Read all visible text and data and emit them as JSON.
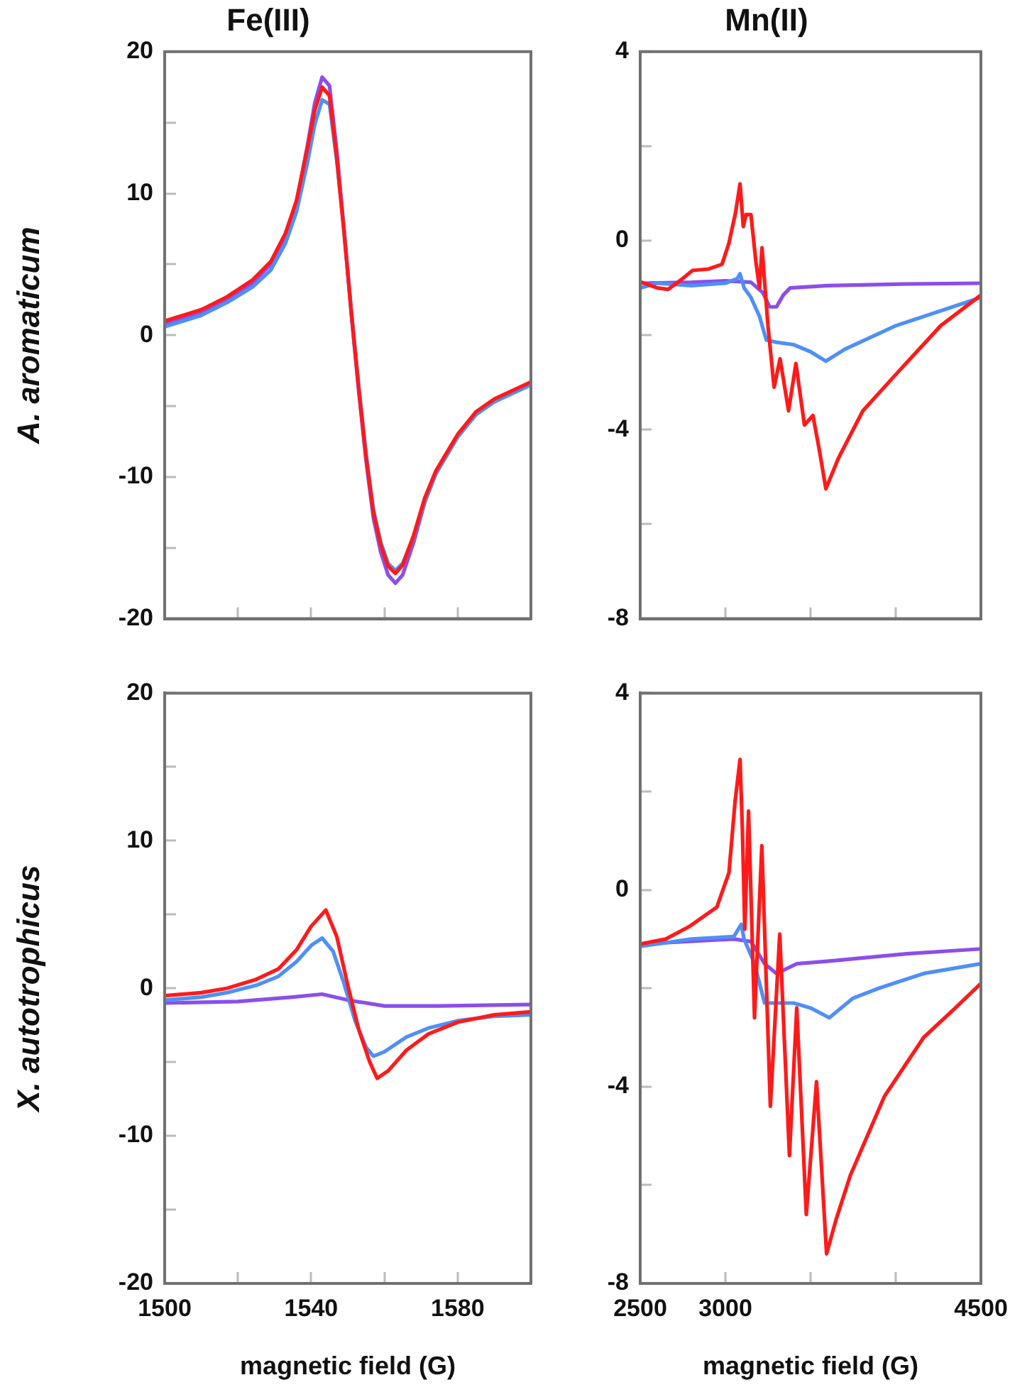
{
  "chart_data": [
    {
      "type": "line",
      "title": "Fe(III)",
      "ylabel": "A. aromaticum",
      "xlim": [
        1500,
        1600
      ],
      "ylim": [
        -20,
        20
      ],
      "xticks": [
        1500,
        {
          "value": 1520,
          "label": null
        },
        1540,
        {
          "value": 1560,
          "label": null
        },
        1580
      ],
      "yticks": [
        -20,
        {
          "value": -15,
          "label": null
        },
        -10,
        {
          "value": -5,
          "label": null
        },
        0,
        {
          "value": 5,
          "label": null
        },
        10,
        {
          "value": 15,
          "label": null
        },
        20
      ],
      "tick_labels": "y",
      "marker": "none",
      "line_style": "solid",
      "grid": false,
      "legend": false,
      "series": [
        {
          "color": "#ff1a1a",
          "x": [
            1500,
            1510,
            1517,
            1524,
            1529,
            1533,
            1536,
            1539,
            1541,
            1543,
            1545,
            1547,
            1549,
            1551,
            1553,
            1555,
            1557,
            1559,
            1561,
            1563,
            1565,
            1568,
            1571,
            1574,
            1577,
            1580,
            1585,
            1590,
            1595,
            1600
          ],
          "values": [
            1.0,
            1.8,
            2.7,
            3.9,
            5.2,
            7.2,
            9.5,
            13.2,
            15.9,
            17.5,
            16.9,
            12.5,
            7.2,
            1.5,
            -3.8,
            -8.6,
            -12.5,
            -14.8,
            -16.3,
            -16.8,
            -16.2,
            -14.1,
            -11.5,
            -9.6,
            -8.3,
            -7.0,
            -5.4,
            -4.5,
            -3.9,
            -3.3
          ]
        },
        {
          "color": "#4f8ff7",
          "x": [
            1500,
            1510,
            1517,
            1524,
            1529,
            1533,
            1536,
            1539,
            1541,
            1543,
            1545,
            1547,
            1549,
            1551,
            1553,
            1555,
            1557,
            1559,
            1561,
            1563,
            1565,
            1568,
            1571,
            1574,
            1577,
            1580,
            1585,
            1590,
            1595,
            1600
          ],
          "values": [
            0.6,
            1.4,
            2.3,
            3.4,
            4.6,
            6.5,
            8.7,
            12.2,
            14.9,
            16.6,
            16.3,
            12.3,
            7.3,
            1.6,
            -3.6,
            -8.4,
            -12.3,
            -14.6,
            -16.1,
            -16.6,
            -16.1,
            -14.2,
            -11.7,
            -9.8,
            -8.5,
            -7.2,
            -5.6,
            -4.7,
            -4.1,
            -3.5
          ]
        },
        {
          "color": "#8b4fe8",
          "x": [
            1500,
            1510,
            1517,
            1524,
            1529,
            1533,
            1536,
            1539,
            1541,
            1543,
            1545,
            1547,
            1549,
            1551,
            1553,
            1555,
            1557,
            1559,
            1561,
            1563,
            1565,
            1568,
            1571,
            1574,
            1577,
            1580,
            1585,
            1590,
            1595,
            1600
          ],
          "values": [
            0.8,
            1.6,
            2.5,
            3.7,
            5.0,
            7.0,
            9.4,
            13.4,
            16.4,
            18.2,
            17.6,
            13.0,
            7.4,
            1.4,
            -4.0,
            -8.9,
            -12.9,
            -15.3,
            -16.9,
            -17.5,
            -16.9,
            -14.6,
            -11.8,
            -9.8,
            -8.4,
            -7.1,
            -5.5,
            -4.6,
            -4.0,
            -3.4
          ]
        }
      ]
    },
    {
      "type": "line",
      "title": "Mn(II)",
      "xlim": [
        2500,
        4500
      ],
      "ylim": [
        -8,
        4
      ],
      "xticks": [
        2500,
        {
          "value": 3000,
          "label": null
        },
        {
          "value": 3500,
          "label": null
        },
        {
          "value": 4000,
          "label": null
        },
        4500
      ],
      "yticks": [
        -8,
        {
          "value": -6,
          "label": null
        },
        -4,
        {
          "value": -2,
          "label": null
        },
        0,
        {
          "value": 2,
          "label": null
        },
        4
      ],
      "tick_labels": "y",
      "marker": "none",
      "line_style": "solid",
      "grid": false,
      "legend": false,
      "series": [
        {
          "color": "#ff1a1a",
          "x": [
            2500,
            2600,
            2664,
            2750,
            2807,
            2900,
            2980,
            3021,
            3060,
            3086,
            3105,
            3121,
            3150,
            3179,
            3200,
            3215,
            3250,
            3286,
            3321,
            3371,
            3414,
            3464,
            3514,
            3550,
            3590,
            3664,
            3807,
            4021,
            4264,
            4500
          ],
          "values": [
            -0.87,
            -1.0,
            -1.03,
            -0.8,
            -0.63,
            -0.6,
            -0.5,
            -0.05,
            0.6,
            1.2,
            0.3,
            0.55,
            0.55,
            -0.44,
            -1.0,
            -0.15,
            -1.8,
            -3.1,
            -2.5,
            -3.6,
            -2.6,
            -3.9,
            -3.7,
            -4.4,
            -5.25,
            -4.6,
            -3.6,
            -2.75,
            -1.8,
            -1.15
          ]
        },
        {
          "color": "#4f8ff7",
          "x": [
            2500,
            2600,
            2800,
            3000,
            3070,
            3086,
            3110,
            3150,
            3200,
            3240,
            3300,
            3400,
            3500,
            3590,
            3700,
            4000,
            4250,
            4500
          ],
          "values": [
            -1.0,
            -0.9,
            -0.95,
            -0.9,
            -0.8,
            -0.7,
            -1.0,
            -1.2,
            -1.6,
            -2.1,
            -2.15,
            -2.2,
            -2.35,
            -2.55,
            -2.3,
            -1.8,
            -1.5,
            -1.2
          ]
        },
        {
          "color": "#8b4fe8",
          "x": [
            2500,
            2800,
            3000,
            3150,
            3220,
            3260,
            3300,
            3340,
            3380,
            3600,
            4000,
            4500
          ],
          "values": [
            -0.9,
            -0.88,
            -0.85,
            -0.88,
            -1.1,
            -1.4,
            -1.4,
            -1.15,
            -1.0,
            -0.95,
            -0.92,
            -0.9
          ]
        }
      ]
    },
    {
      "type": "line",
      "ylabel": "X. autotrophicus",
      "xlabel": "magnetic field (G)",
      "xlim": [
        1500,
        1600
      ],
      "ylim": [
        -20,
        20
      ],
      "xticks": [
        1500,
        {
          "value": 1520,
          "label": null
        },
        1540,
        {
          "value": 1560,
          "label": null
        },
        1580
      ],
      "yticks": [
        -20,
        {
          "value": -15,
          "label": null
        },
        -10,
        {
          "value": -5,
          "label": null
        },
        0,
        {
          "value": 5,
          "label": null
        },
        10,
        {
          "value": 15,
          "label": null
        },
        20
      ],
      "marker": "none",
      "line_style": "solid",
      "grid": false,
      "legend": false,
      "series": [
        {
          "color": "#ff1a1a",
          "x": [
            1500,
            1510,
            1517,
            1525,
            1531,
            1536,
            1540,
            1544,
            1547,
            1550,
            1553,
            1556,
            1558,
            1561,
            1566,
            1572,
            1580,
            1590,
            1600
          ],
          "values": [
            -0.5,
            -0.3,
            0,
            0.6,
            1.3,
            2.6,
            4.2,
            5.3,
            3.5,
            0.2,
            -2.8,
            -5.0,
            -6.1,
            -5.6,
            -4.2,
            -3.1,
            -2.3,
            -1.8,
            -1.6
          ]
        },
        {
          "color": "#4f8ff7",
          "x": [
            1500,
            1510,
            1517,
            1525,
            1531,
            1536,
            1540,
            1543,
            1546,
            1549,
            1552,
            1555,
            1557,
            1560,
            1566,
            1572,
            1580,
            1590,
            1600
          ],
          "values": [
            -0.8,
            -0.6,
            -0.3,
            0.2,
            0.8,
            1.8,
            2.9,
            3.4,
            2.5,
            0.3,
            -2.2,
            -4.0,
            -4.6,
            -4.3,
            -3.3,
            -2.7,
            -2.2,
            -1.9,
            -1.8
          ]
        },
        {
          "color": "#8b4fe8",
          "x": [
            1500,
            1520,
            1535,
            1543,
            1550,
            1560,
            1575,
            1600
          ],
          "values": [
            -1.0,
            -0.9,
            -0.6,
            -0.4,
            -0.8,
            -1.2,
            -1.2,
            -1.1
          ]
        }
      ]
    },
    {
      "type": "line",
      "xlabel": "magnetic field (G)",
      "xlim": [
        2500,
        4500
      ],
      "ylim": [
        -8,
        4
      ],
      "xticks": [
        2500,
        3000,
        {
          "value": 3500,
          "label": null
        },
        {
          "value": 4000,
          "label": null
        },
        4500
      ],
      "yticks": [
        -8,
        {
          "value": -6,
          "label": null
        },
        -4,
        {
          "value": -2,
          "label": null
        },
        0,
        {
          "value": 2,
          "label": null
        },
        4
      ],
      "marker": "none",
      "line_style": "solid",
      "grid": false,
      "legend": false,
      "series": [
        {
          "color": "#ff1a1a",
          "x": [
            2500,
            2650,
            2786,
            2950,
            3021,
            3057,
            3086,
            3100,
            3114,
            3136,
            3171,
            3214,
            3264,
            3319,
            3376,
            3419,
            3475,
            3535,
            3594,
            3650,
            3734,
            3933,
            4164,
            4350,
            4500
          ],
          "values": [
            -1.1,
            -1.0,
            -0.75,
            -0.35,
            0.35,
            1.8,
            2.65,
            1.2,
            -0.8,
            1.6,
            -2.6,
            0.9,
            -4.4,
            -0.9,
            -5.4,
            -2.4,
            -6.6,
            -3.9,
            -7.4,
            -6.7,
            -5.8,
            -4.2,
            -3.0,
            -2.4,
            -1.9
          ]
        },
        {
          "color": "#4f8ff7",
          "x": [
            2500,
            2800,
            3050,
            3093,
            3110,
            3171,
            3230,
            3400,
            3500,
            3610,
            3750,
            3900,
            4164,
            4500
          ],
          "values": [
            -1.15,
            -1.0,
            -0.95,
            -0.7,
            -1.0,
            -1.5,
            -2.3,
            -2.3,
            -2.4,
            -2.6,
            -2.2,
            -2.0,
            -1.7,
            -1.5
          ]
        },
        {
          "color": "#8b4fe8",
          "x": [
            2500,
            3050,
            3150,
            3230,
            3300,
            3420,
            3600,
            4064,
            4500
          ],
          "values": [
            -1.1,
            -1.0,
            -1.05,
            -1.5,
            -1.7,
            -1.5,
            -1.45,
            -1.3,
            -1.2
          ]
        }
      ]
    }
  ]
}
